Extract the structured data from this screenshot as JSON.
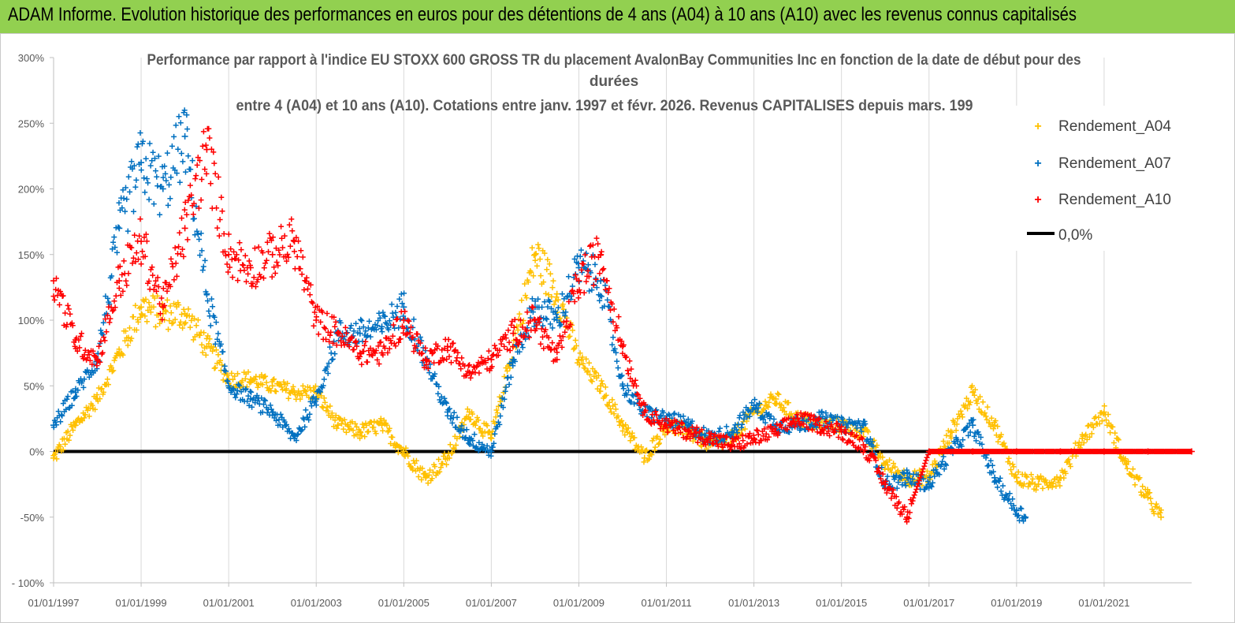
{
  "header": {
    "banner_title": "ADAM Informe. Evolution historique des performances en euros pour des détentions de 4 ans (A04) à 10 ans (A10) avec les revenus connus capitalisés"
  },
  "colors": {
    "banner": "#92d050",
    "A04": "#ffc000",
    "A07": "#0070c0",
    "A10": "#ff0000",
    "zero": "#000000",
    "grid": "#d9d9d9"
  },
  "chart_data": {
    "type": "scatter",
    "title_lines": [
      "Performance par rapport à l'indice EU STOXX 600 GROSS TR  du placement AvalonBay Communities Inc en fonction de la date de début pour des",
      "durées",
      "entre 4 (A04) et 10 ans (A10). Cotations entre janv. 1997 et févr. 2026. Revenus CAPITALISES depuis mars. 199"
    ],
    "ylim": [
      -100,
      300
    ],
    "y_ticks": [
      -100,
      -50,
      0,
      50,
      100,
      150,
      200,
      250,
      300
    ],
    "y_tick_labels": [
      "- 100%",
      "-50%",
      "0%",
      "50%",
      "100%",
      "150%",
      "200%",
      "250%",
      "300%"
    ],
    "xlim": [
      1997.0,
      2023.0
    ],
    "x_ticks": [
      1997,
      1999,
      2001,
      2003,
      2005,
      2007,
      2009,
      2011,
      2013,
      2015,
      2017,
      2019,
      2021
    ],
    "x_tick_labels": [
      "01/01/1997",
      "01/01/1999",
      "01/01/2001",
      "01/01/2003",
      "01/01/2005",
      "01/01/2007",
      "01/01/2009",
      "01/01/2011",
      "01/01/2013",
      "01/01/2015",
      "01/01/2017",
      "01/01/2019",
      "01/01/2021"
    ],
    "legend_position": "top-right",
    "zero_line": {
      "name": "0,0%",
      "value": 0
    },
    "series": [
      {
        "name": "Rendement_A04",
        "color_key": "A04",
        "x": [
          1997.0,
          1997.5,
          1998.0,
          1998.5,
          1999.0,
          1999.5,
          2000.0,
          2000.5,
          2001.0,
          2001.5,
          2002.0,
          2002.5,
          2003.0,
          2003.5,
          2004.0,
          2004.5,
          2005.0,
          2005.5,
          2006.0,
          2006.5,
          2007.0,
          2007.5,
          2008.0,
          2008.5,
          2009.0,
          2009.5,
          2010.0,
          2010.5,
          2011.0,
          2011.5,
          2012.0,
          2012.5,
          2013.0,
          2013.5,
          2014.0,
          2014.5,
          2015.0,
          2015.5,
          2016.0,
          2016.5,
          2017.0,
          2017.5,
          2018.0,
          2018.5,
          2019.0,
          2019.5,
          2020.0,
          2020.5,
          2021.0,
          2021.5,
          2022.0,
          2022.3
        ],
        "values": [
          -5,
          20,
          40,
          75,
          110,
          105,
          105,
          80,
          55,
          55,
          50,
          45,
          45,
          20,
          15,
          20,
          0,
          -20,
          -5,
          30,
          10,
          80,
          150,
          120,
          70,
          50,
          20,
          -5,
          20,
          15,
          5,
          10,
          30,
          40,
          25,
          20,
          20,
          15,
          -10,
          -20,
          -20,
          15,
          45,
          20,
          -20,
          -25,
          -20,
          10,
          30,
          -10,
          -35,
          -50
        ]
      },
      {
        "name": "Rendement_A07",
        "color_key": "A07",
        "x": [
          1997.0,
          1997.5,
          1998.0,
          1998.5,
          1999.0,
          1999.5,
          2000.0,
          2000.5,
          2001.0,
          2001.5,
          2002.0,
          2002.5,
          2003.0,
          2003.5,
          2004.0,
          2004.5,
          2005.0,
          2005.5,
          2006.0,
          2006.5,
          2007.0,
          2007.5,
          2008.0,
          2008.5,
          2009.0,
          2009.5,
          2010.0,
          2010.5,
          2011.0,
          2011.5,
          2012.0,
          2012.5,
          2013.0,
          2013.5,
          2014.0,
          2014.5,
          2015.0,
          2015.5,
          2016.0,
          2016.5,
          2017.0,
          2017.5,
          2018.0,
          2018.5,
          2019.0,
          2019.2
        ],
        "values": [
          20,
          45,
          70,
          170,
          220,
          200,
          240,
          120,
          50,
          40,
          30,
          10,
          40,
          90,
          90,
          95,
          110,
          70,
          30,
          10,
          0,
          70,
          110,
          100,
          140,
          130,
          50,
          30,
          25,
          20,
          10,
          15,
          35,
          20,
          20,
          25,
          20,
          20,
          -25,
          -20,
          -25,
          0,
          20,
          -20,
          -45,
          -50
        ]
      },
      {
        "name": "Rendement_A10",
        "color_key": "A10",
        "x": [
          1997.0,
          1997.5,
          1998.0,
          1998.5,
          1999.0,
          1999.5,
          2000.0,
          2000.5,
          2001.0,
          2001.5,
          2002.0,
          2002.5,
          2003.0,
          2003.5,
          2004.0,
          2004.5,
          2005.0,
          2005.5,
          2006.0,
          2006.5,
          2007.0,
          2007.5,
          2008.0,
          2008.5,
          2009.0,
          2009.5,
          2010.0,
          2010.5,
          2011.0,
          2011.5,
          2012.0,
          2012.5,
          2013.0,
          2013.5,
          2014.0,
          2014.5,
          2015.0,
          2015.5,
          2016.0,
          2016.5,
          2017.0,
          2018.0,
          2019.0,
          2020.0,
          2021.0,
          2022.0,
          2023.0
        ],
        "values": [
          130,
          85,
          70,
          130,
          160,
          110,
          170,
          230,
          150,
          140,
          150,
          160,
          100,
          90,
          75,
          75,
          100,
          70,
          80,
          60,
          70,
          90,
          100,
          70,
          130,
          150,
          80,
          30,
          20,
          15,
          10,
          5,
          10,
          15,
          25,
          20,
          15,
          5,
          -25,
          -50,
          0,
          0,
          0,
          0,
          0,
          0,
          0
        ]
      }
    ]
  }
}
